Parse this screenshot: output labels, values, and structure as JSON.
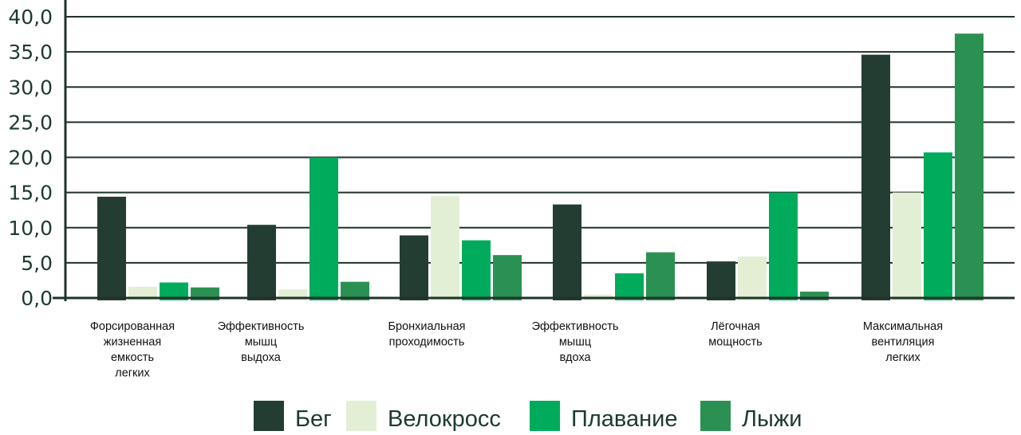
{
  "chart_data": {
    "type": "bar",
    "title": "",
    "xlabel": "",
    "ylabel": "",
    "ylim": [
      0,
      40
    ],
    "yticks": [
      "0,0",
      "5,0",
      "10,0",
      "15,0",
      "20,0",
      "25,0",
      "30,0",
      "35,0",
      "40,0"
    ],
    "grid": true,
    "legend_position": "bottom",
    "categories": [
      [
        "Форсированная",
        "жизненная",
        "емкость",
        "легких"
      ],
      [
        "Эффективность",
        "мышц",
        "выдоха"
      ],
      [
        "Бронхиальная",
        "проходимость"
      ],
      [
        "Эффективность",
        "мышц",
        "вдоха"
      ],
      [
        "Лёгочная",
        "мощность"
      ],
      [
        "Максимальная",
        "вентиляция",
        "легких"
      ]
    ],
    "series": [
      {
        "name": "Бег",
        "color": "#243d32",
        "values": [
          14.4,
          10.4,
          8.9,
          13.3,
          5.2,
          34.6
        ]
      },
      {
        "name": "Велокросс",
        "color": "#e2efd5",
        "values": [
          1.6,
          1.2,
          14.5,
          0.5,
          5.9,
          15.0
        ]
      },
      {
        "name": "Плавание",
        "color": "#00ab5c",
        "values": [
          2.2,
          20.0,
          8.2,
          3.5,
          15.0,
          20.7
        ]
      },
      {
        "name": "Лыжи",
        "color": "#2b9152",
        "values": [
          1.5,
          2.3,
          6.1,
          6.5,
          0.9,
          37.6
        ]
      }
    ]
  }
}
